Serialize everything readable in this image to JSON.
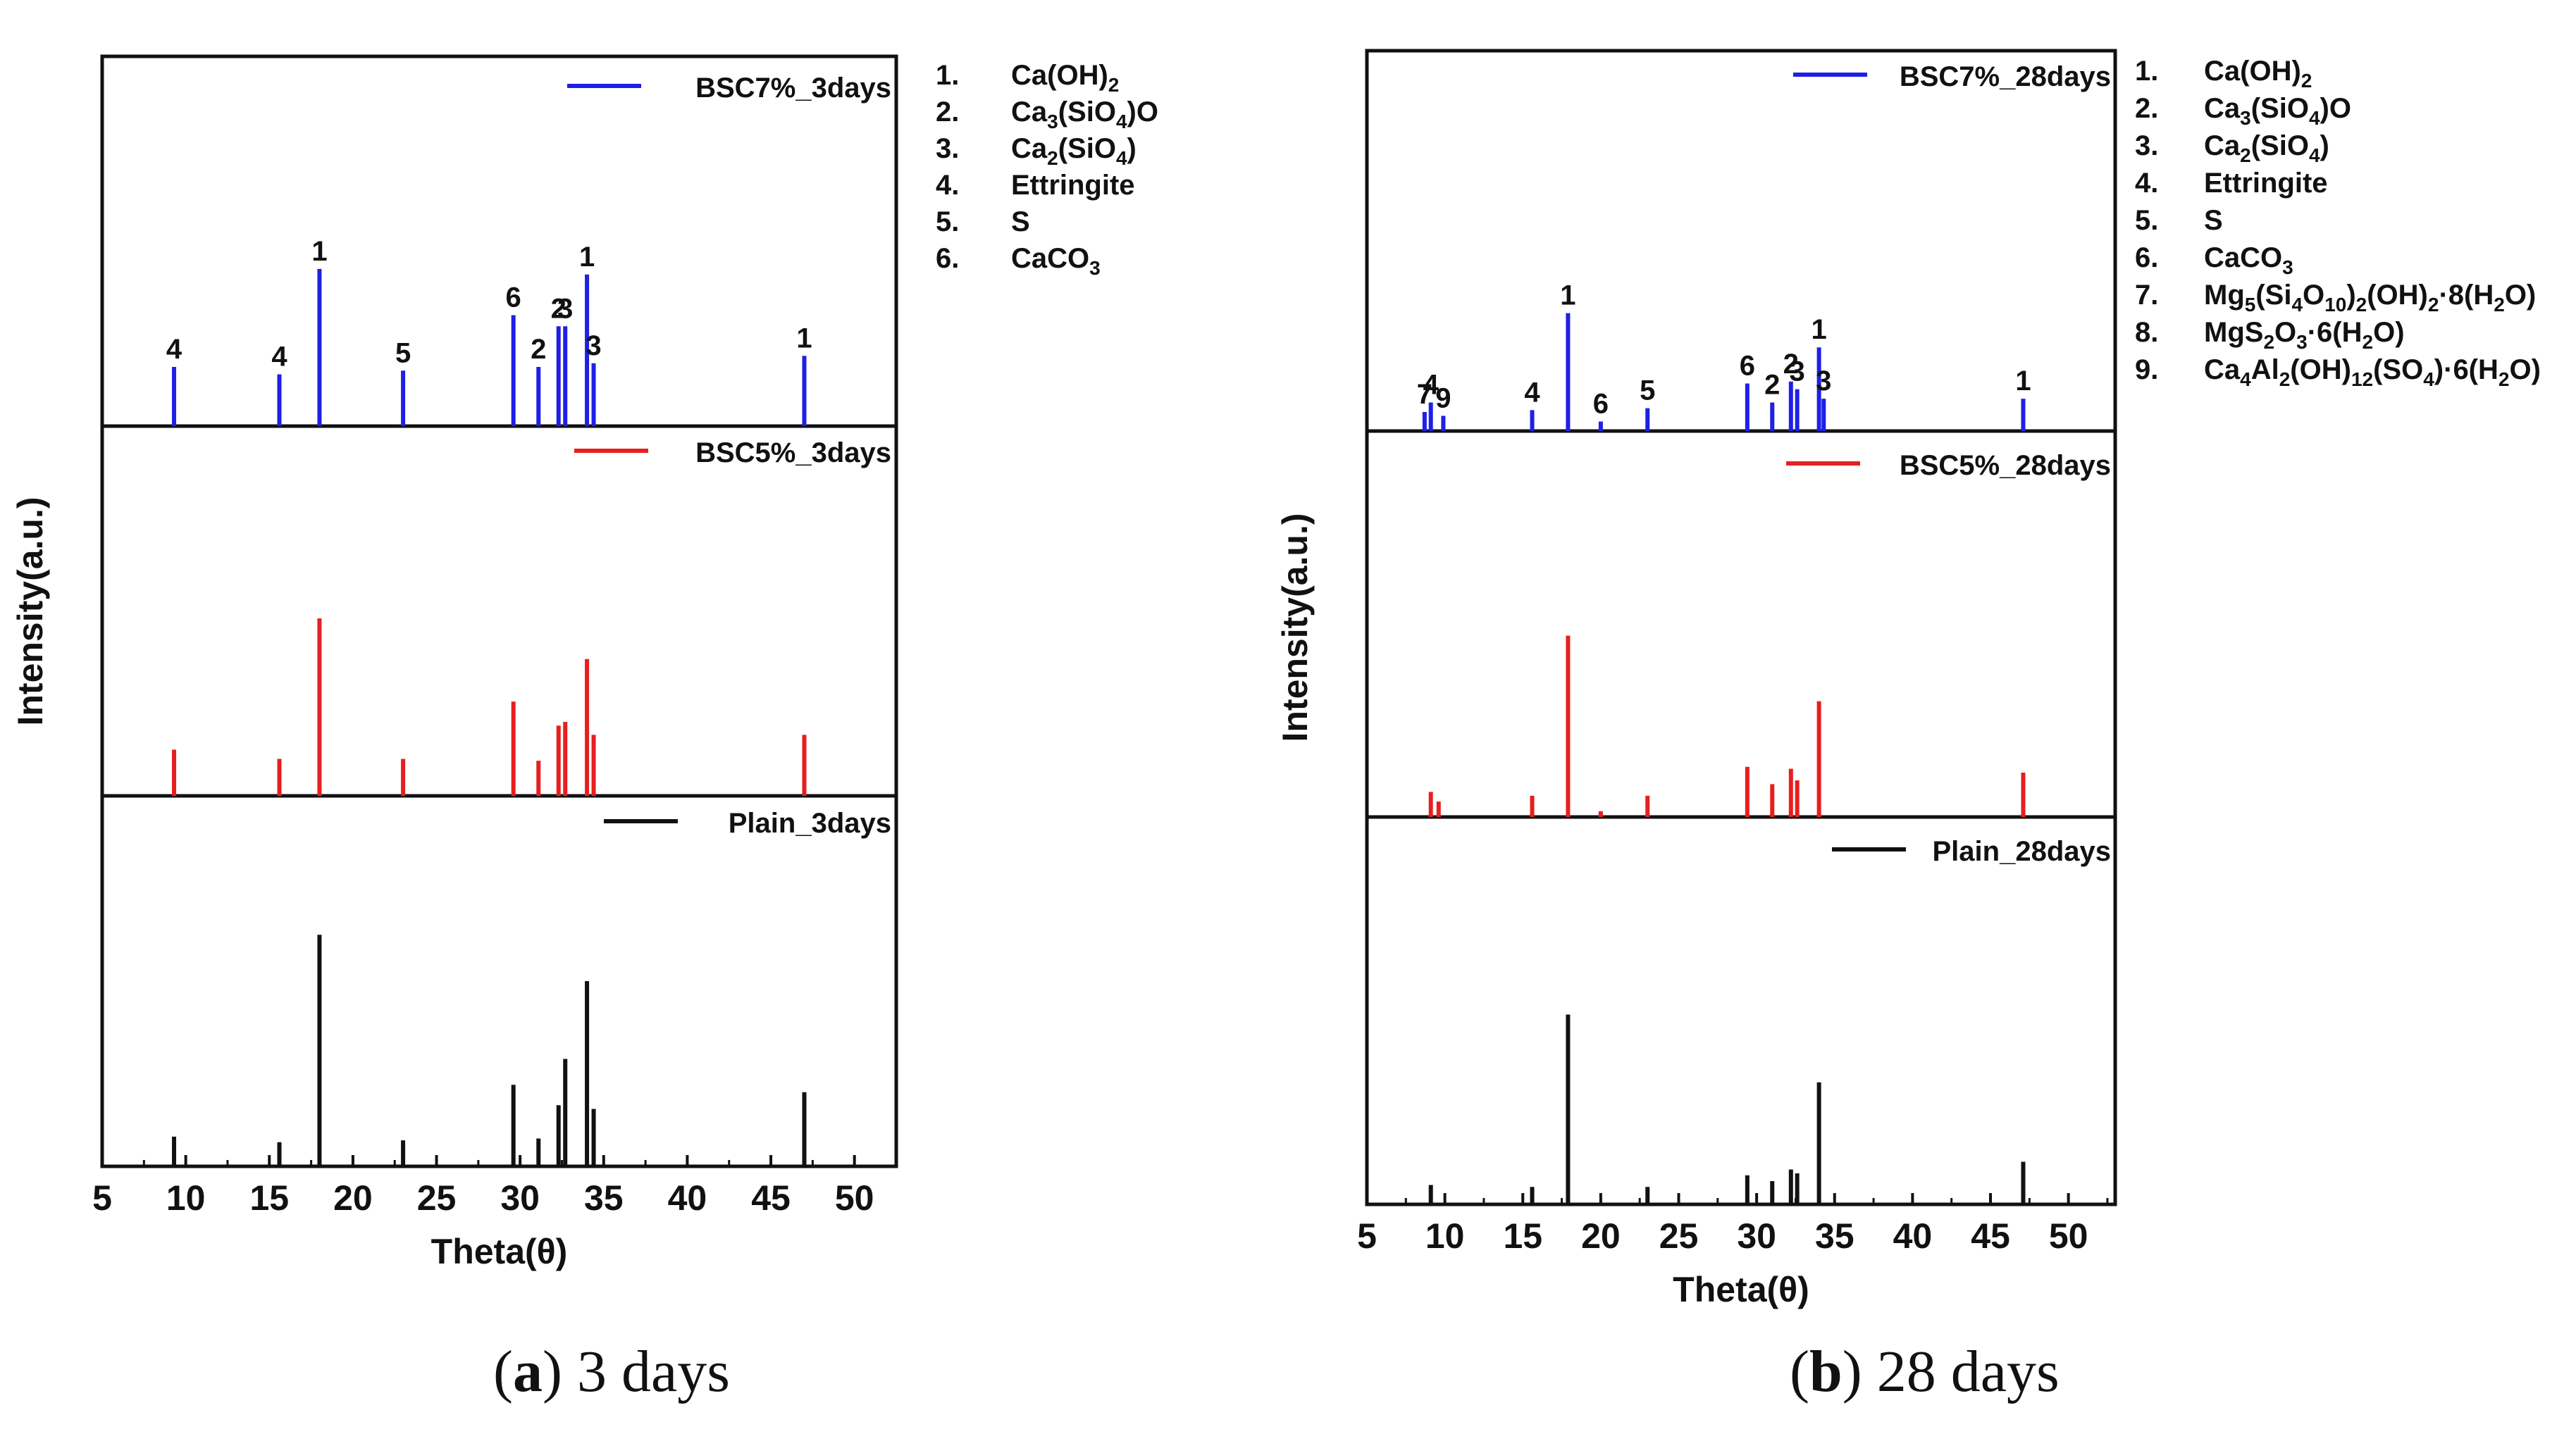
{
  "figure": {
    "captions": [
      {
        "letter": "a",
        "text": " 3 days"
      },
      {
        "letter": "b",
        "text": " 28 days"
      }
    ]
  },
  "chart_data": [
    {
      "type": "bar",
      "id": "panel-a",
      "title": "3 days",
      "xlabel": "Theta(θ)",
      "ylabel": "Intensity(a.u.)",
      "xlim": [
        5,
        52.5
      ],
      "xticks": [
        5,
        10,
        15,
        20,
        25,
        30,
        35,
        40,
        45,
        50
      ],
      "grid": false,
      "series": [
        {
          "name": "BSC7%_3days",
          "color": "#1f1fe6",
          "peaks": [
            {
              "x": 9.3,
              "y": 0.32,
              "label": "4"
            },
            {
              "x": 15.6,
              "y": 0.28,
              "label": "4"
            },
            {
              "x": 18.0,
              "y": 0.85,
              "label": "1"
            },
            {
              "x": 23.0,
              "y": 0.3,
              "label": "5"
            },
            {
              "x": 29.6,
              "y": 0.6,
              "label": "6"
            },
            {
              "x": 31.1,
              "y": 0.32,
              "label": "2"
            },
            {
              "x": 32.3,
              "y": 0.54,
              "label": "2"
            },
            {
              "x": 32.7,
              "y": 0.54,
              "label": "3"
            },
            {
              "x": 34.0,
              "y": 0.82,
              "label": "1"
            },
            {
              "x": 34.4,
              "y": 0.34,
              "label": "3"
            },
            {
              "x": 47.0,
              "y": 0.38,
              "label": "1"
            }
          ]
        },
        {
          "name": "BSC5%_3days",
          "color": "#e61f1f",
          "peaks": [
            {
              "x": 9.3,
              "y": 0.25
            },
            {
              "x": 15.6,
              "y": 0.2
            },
            {
              "x": 18.0,
              "y": 0.96
            },
            {
              "x": 23.0,
              "y": 0.2
            },
            {
              "x": 29.6,
              "y": 0.51
            },
            {
              "x": 31.1,
              "y": 0.19
            },
            {
              "x": 32.3,
              "y": 0.38
            },
            {
              "x": 32.7,
              "y": 0.4
            },
            {
              "x": 34.0,
              "y": 0.74
            },
            {
              "x": 34.4,
              "y": 0.33
            },
            {
              "x": 47.0,
              "y": 0.33
            }
          ]
        },
        {
          "name": "Plain_3days",
          "color": "#111111",
          "peaks": [
            {
              "x": 9.3,
              "y": 0.16
            },
            {
              "x": 15.6,
              "y": 0.13
            },
            {
              "x": 18.0,
              "y": 1.25
            },
            {
              "x": 23.0,
              "y": 0.14
            },
            {
              "x": 29.6,
              "y": 0.44
            },
            {
              "x": 31.1,
              "y": 0.15
            },
            {
              "x": 32.3,
              "y": 0.33
            },
            {
              "x": 32.7,
              "y": 0.58
            },
            {
              "x": 34.0,
              "y": 1.0
            },
            {
              "x": 34.4,
              "y": 0.31
            },
            {
              "x": 47.0,
              "y": 0.4
            }
          ]
        }
      ],
      "phase_key": [
        {
          "num": "1.",
          "parts": [
            [
              "Ca(OH)",
              ""
            ],
            [
              "2",
              "sub"
            ]
          ]
        },
        {
          "num": "2.",
          "parts": [
            [
              "Ca",
              ""
            ],
            [
              "3",
              "sub"
            ],
            [
              "(SiO",
              ""
            ],
            [
              "4",
              "sub"
            ],
            [
              ")O",
              ""
            ]
          ]
        },
        {
          "num": "3.",
          "parts": [
            [
              "Ca",
              ""
            ],
            [
              "2",
              "sub"
            ],
            [
              "(SiO",
              ""
            ],
            [
              "4",
              "sub"
            ],
            [
              ")",
              ""
            ]
          ]
        },
        {
          "num": "4.",
          "parts": [
            [
              "Ettringite",
              ""
            ]
          ]
        },
        {
          "num": "5.",
          "parts": [
            [
              "S",
              ""
            ]
          ]
        },
        {
          "num": "6.",
          "parts": [
            [
              "CaCO",
              ""
            ],
            [
              "3",
              "sub"
            ]
          ]
        }
      ]
    },
    {
      "type": "bar",
      "id": "panel-b",
      "title": "28 days",
      "xlabel": "Theta(θ)",
      "ylabel": "Intensity(a.u.)",
      "xlim": [
        5,
        53
      ],
      "xticks": [
        5,
        10,
        15,
        20,
        25,
        30,
        35,
        40,
        45,
        50
      ],
      "grid": false,
      "series": [
        {
          "name": "BSC7%_28days",
          "color": "#1f1fe6",
          "peaks": [
            {
              "x": 8.7,
              "y": 0.1,
              "label": "7"
            },
            {
              "x": 9.1,
              "y": 0.15,
              "label": "4"
            },
            {
              "x": 9.9,
              "y": 0.08,
              "label": "9"
            },
            {
              "x": 15.6,
              "y": 0.11,
              "label": "4"
            },
            {
              "x": 17.9,
              "y": 0.62,
              "label": "1"
            },
            {
              "x": 20.0,
              "y": 0.05,
              "label": "6"
            },
            {
              "x": 23.0,
              "y": 0.12,
              "label": "5"
            },
            {
              "x": 29.4,
              "y": 0.25,
              "label": "6"
            },
            {
              "x": 31.0,
              "y": 0.15,
              "label": "2"
            },
            {
              "x": 32.2,
              "y": 0.26,
              "label": "2"
            },
            {
              "x": 32.6,
              "y": 0.22,
              "label": "3"
            },
            {
              "x": 34.0,
              "y": 0.44,
              "label": "1"
            },
            {
              "x": 34.3,
              "y": 0.17,
              "label": "3"
            },
            {
              "x": 47.1,
              "y": 0.17,
              "label": "1"
            }
          ]
        },
        {
          "name": "BSC5%_28days",
          "color": "#e61f1f",
          "peaks": [
            {
              "x": 9.1,
              "y": 0.13
            },
            {
              "x": 9.6,
              "y": 0.08
            },
            {
              "x": 15.6,
              "y": 0.11
            },
            {
              "x": 17.9,
              "y": 0.94
            },
            {
              "x": 20.0,
              "y": 0.03
            },
            {
              "x": 23.0,
              "y": 0.11
            },
            {
              "x": 29.4,
              "y": 0.26
            },
            {
              "x": 31.0,
              "y": 0.17
            },
            {
              "x": 32.2,
              "y": 0.25
            },
            {
              "x": 32.6,
              "y": 0.19
            },
            {
              "x": 34.0,
              "y": 0.6
            },
            {
              "x": 47.1,
              "y": 0.23
            }
          ]
        },
        {
          "name": "Plain_28days",
          "color": "#111111",
          "peaks": [
            {
              "x": 9.1,
              "y": 0.1
            },
            {
              "x": 15.6,
              "y": 0.09
            },
            {
              "x": 17.9,
              "y": 0.98
            },
            {
              "x": 23.0,
              "y": 0.09
            },
            {
              "x": 29.4,
              "y": 0.15
            },
            {
              "x": 31.0,
              "y": 0.12
            },
            {
              "x": 32.2,
              "y": 0.18
            },
            {
              "x": 32.6,
              "y": 0.16
            },
            {
              "x": 34.0,
              "y": 0.63
            },
            {
              "x": 47.1,
              "y": 0.22
            }
          ]
        }
      ],
      "phase_key": [
        {
          "num": "1.",
          "parts": [
            [
              "Ca(OH)",
              ""
            ],
            [
              "2",
              "sub"
            ]
          ]
        },
        {
          "num": "2.",
          "parts": [
            [
              "Ca",
              ""
            ],
            [
              "3",
              "sub"
            ],
            [
              "(SiO",
              ""
            ],
            [
              "4",
              "sub"
            ],
            [
              ")O",
              ""
            ]
          ]
        },
        {
          "num": "3.",
          "parts": [
            [
              "Ca",
              ""
            ],
            [
              "2",
              "sub"
            ],
            [
              "(SiO",
              ""
            ],
            [
              "4",
              "sub"
            ],
            [
              ")",
              ""
            ]
          ]
        },
        {
          "num": "4.",
          "parts": [
            [
              "Ettringite",
              ""
            ]
          ]
        },
        {
          "num": "5.",
          "parts": [
            [
              "S",
              ""
            ]
          ]
        },
        {
          "num": "6.",
          "parts": [
            [
              "CaCO",
              ""
            ],
            [
              "3",
              "sub"
            ]
          ]
        },
        {
          "num": "7.",
          "parts": [
            [
              "Mg",
              ""
            ],
            [
              "5",
              "sub"
            ],
            [
              "(Si",
              ""
            ],
            [
              "4",
              "sub"
            ],
            [
              "O",
              ""
            ],
            [
              "10",
              "sub"
            ],
            [
              ")",
              ""
            ],
            [
              "2",
              "sub"
            ],
            [
              "(OH)",
              ""
            ],
            [
              "2",
              "sub"
            ],
            [
              "·8(H",
              ""
            ],
            [
              "2",
              "sub"
            ],
            [
              "O)",
              ""
            ]
          ]
        },
        {
          "num": "8.",
          "parts": [
            [
              "MgS",
              ""
            ],
            [
              "2",
              "sub"
            ],
            [
              "O",
              ""
            ],
            [
              "3",
              "sub"
            ],
            [
              "·6(H",
              ""
            ],
            [
              "2",
              "sub"
            ],
            [
              "O)",
              ""
            ]
          ]
        },
        {
          "num": "9.",
          "parts": [
            [
              "Ca",
              ""
            ],
            [
              "4",
              "sub"
            ],
            [
              "Al",
              ""
            ],
            [
              "2",
              "sub"
            ],
            [
              "(OH)",
              ""
            ],
            [
              "12",
              "sub"
            ],
            [
              "(SO",
              ""
            ],
            [
              "4",
              "sub"
            ],
            [
              ")·6(H",
              ""
            ],
            [
              "2",
              "sub"
            ],
            [
              "O)",
              ""
            ]
          ]
        }
      ]
    }
  ]
}
